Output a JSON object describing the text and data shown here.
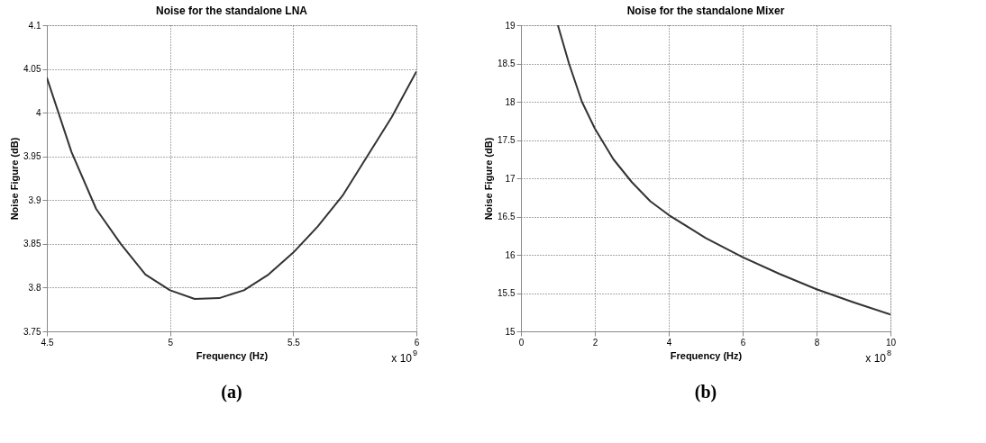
{
  "chart_data": [
    {
      "type": "line",
      "title": "Noise for the standalone LNA",
      "xlabel": "Frequency (Hz)",
      "ylabel": "Noise Figure (dB)",
      "x": [
        4.5,
        4.6,
        4.7,
        4.8,
        4.9,
        5.0,
        5.1,
        5.2,
        5.3,
        5.4,
        5.5,
        5.6,
        5.7,
        5.8,
        5.9,
        6.0
      ],
      "series": [
        {
          "color": "#333333",
          "values": [
            4.04,
            3.955,
            3.89,
            3.85,
            3.815,
            3.797,
            3.787,
            3.788,
            3.797,
            3.815,
            3.84,
            3.87,
            3.905,
            3.95,
            3.995,
            4.047
          ]
        }
      ],
      "xlim": [
        4.5,
        6
      ],
      "xticks": [
        4.5,
        5,
        5.5,
        6
      ],
      "ylim": [
        3.75,
        4.1
      ],
      "yticks": [
        3.75,
        3.8,
        3.85,
        3.9,
        3.95,
        4,
        4.05,
        4.1
      ],
      "grid": true,
      "line_style": "solid",
      "marker": "none",
      "annotations": [
        "x 10$^{9}$",
        "(a)"
      ]
    },
    {
      "type": "line",
      "title": "Noise for the standalone Mixer",
      "xlabel": "Frequency (Hz)",
      "ylabel": "Noise Figure (dB)",
      "x": [
        1.0,
        1.3,
        1.65,
        2.0,
        2.5,
        3.0,
        3.5,
        4.0,
        5.0,
        6.0,
        7.0,
        8.0,
        9.0,
        10.0
      ],
      "series": [
        {
          "color": "#333333",
          "values": [
            19.0,
            18.5,
            18.0,
            17.65,
            17.25,
            16.95,
            16.7,
            16.52,
            16.22,
            15.97,
            15.75,
            15.55,
            15.38,
            15.22
          ]
        }
      ],
      "xlim": [
        0,
        10
      ],
      "xticks": [
        0,
        2,
        4,
        6,
        8,
        10
      ],
      "ylim": [
        15,
        19
      ],
      "yticks": [
        15,
        15.5,
        16,
        16.5,
        17,
        17.5,
        18,
        18.5,
        19
      ],
      "grid": true,
      "line_style": "solid",
      "marker": "none",
      "annotations": [
        "x 10$^{8}$",
        "(b)"
      ]
    }
  ]
}
